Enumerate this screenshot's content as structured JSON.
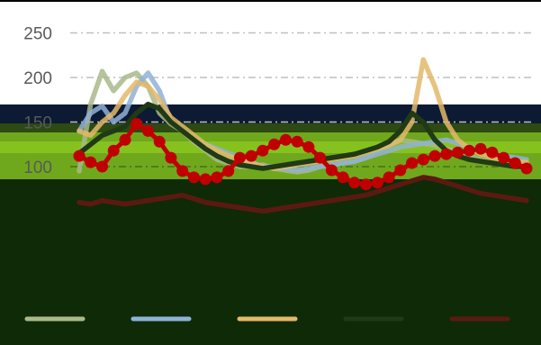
{
  "chart_data": {
    "type": "line",
    "title": "",
    "xlabel": "",
    "ylabel": "",
    "ylim": [
      0,
      250
    ],
    "y_ticks": [
      100,
      150,
      200,
      250
    ],
    "grid": true,
    "legend": "bottom",
    "x_count": 40,
    "series": [
      {
        "color": "#a9b98a",
        "values": [
          95,
          170,
          207,
          185,
          200,
          205,
          190,
          160,
          148,
          140,
          128,
          118,
          108,
          104,
          100,
          100,
          102,
          98,
          96,
          94,
          96,
          100,
          102,
          104,
          106,
          110,
          118,
          124,
          130,
          128,
          126,
          124,
          120,
          116,
          112,
          108,
          104,
          102,
          100,
          98
        ]
      },
      {
        "color": "#8fb2d6",
        "values": [
          140,
          160,
          168,
          150,
          160,
          190,
          205,
          185,
          150,
          140,
          130,
          125,
          120,
          115,
          110,
          105,
          100,
          100,
          98,
          96,
          98,
          100,
          102,
          104,
          106,
          110,
          114,
          118,
          122,
          124,
          126,
          128,
          130,
          126,
          122,
          118,
          114,
          112,
          110,
          108
        ]
      },
      {
        "color": "#e3b96a",
        "values": [
          140,
          135,
          150,
          160,
          180,
          195,
          190,
          175,
          155,
          145,
          135,
          125,
          118,
          112,
          108,
          104,
          100,
          98,
          100,
          102,
          104,
          106,
          108,
          110,
          112,
          116,
          120,
          124,
          130,
          150,
          220,
          190,
          150,
          130,
          120,
          114,
          110,
          108,
          106,
          105
        ]
      },
      {
        "color": "#1f3a14",
        "values": [
          115,
          125,
          135,
          140,
          145,
          160,
          170,
          165,
          150,
          140,
          130,
          120,
          112,
          106,
          102,
          100,
          98,
          100,
          102,
          104,
          106,
          108,
          110,
          112,
          114,
          118,
          122,
          128,
          140,
          160,
          150,
          130,
          118,
          112,
          108,
          106,
          104,
          102,
          100,
          100
        ]
      },
      {
        "color": "#5a1a12",
        "values": [
          60,
          58,
          62,
          60,
          58,
          60,
          62,
          64,
          66,
          68,
          64,
          60,
          58,
          56,
          54,
          52,
          50,
          52,
          54,
          56,
          58,
          60,
          62,
          64,
          66,
          68,
          72,
          76,
          80,
          84,
          88,
          86,
          82,
          78,
          74,
          70,
          68,
          66,
          64,
          62
        ]
      },
      {
        "color": "#c00000",
        "markers": true,
        "values": [
          112,
          105,
          100,
          118,
          130,
          148,
          140,
          128,
          110,
          95,
          88,
          86,
          88,
          95,
          110,
          112,
          118,
          125,
          130,
          128,
          122,
          110,
          96,
          88,
          82,
          80,
          82,
          88,
          96,
          104,
          108,
          112,
          114,
          116,
          118,
          120,
          116,
          110,
          104,
          98
        ]
      }
    ]
  }
}
